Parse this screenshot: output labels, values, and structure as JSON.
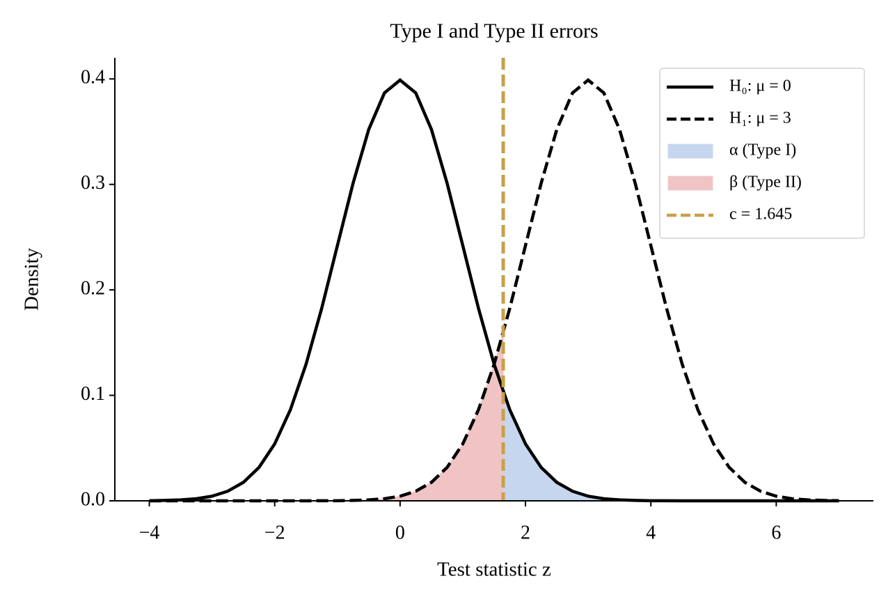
{
  "chart_data": {
    "type": "line",
    "title": "Type I and Type II errors",
    "x_label": "Test statistic z",
    "y_label": "Density",
    "xlim": [
      -4.55,
      7.55
    ],
    "ylim": [
      0,
      0.42
    ],
    "xticks": [
      {
        "value": -4,
        "label": "−4"
      },
      {
        "value": -2,
        "label": "−2"
      },
      0,
      2,
      4,
      6
    ],
    "yticks": [
      {
        "value": 0,
        "label": "0.0"
      },
      {
        "value": 0.1,
        "label": "0.1"
      },
      {
        "value": 0.2,
        "label": "0.2"
      },
      {
        "value": 0.3,
        "label": "0.3"
      },
      {
        "value": 0.4,
        "label": "0.4"
      }
    ],
    "legend": "upper right",
    "series": [
      {
        "name": "H₀: μ = 0",
        "color": "#000000",
        "dash": false,
        "x": [
          -4,
          -3.75,
          -3.5,
          -3.25,
          -3,
          -2.75,
          -2.5,
          -2.25,
          -2,
          -1.75,
          -1.5,
          -1.25,
          -1,
          -0.75,
          -0.5,
          -0.25,
          0,
          0.25,
          0.5,
          0.75,
          1,
          1.25,
          1.5,
          1.75,
          2,
          2.25,
          2.5,
          2.75,
          3,
          3.25,
          3.5,
          3.75,
          4,
          4.25,
          4.5,
          4.75,
          5,
          5.25,
          5.5,
          5.75,
          6,
          6.25,
          6.5,
          6.75,
          7
        ],
        "values": [
          0.0001,
          0.0004,
          0.0009,
          0.002,
          0.0044,
          0.0091,
          0.0175,
          0.0317,
          0.054,
          0.0863,
          0.1295,
          0.1826,
          0.242,
          0.3011,
          0.3521,
          0.3867,
          0.3989,
          0.3867,
          0.3521,
          0.3011,
          0.242,
          0.1826,
          0.1295,
          0.0863,
          0.054,
          0.0317,
          0.0175,
          0.0091,
          0.0044,
          0.002,
          0.0009,
          0.0004,
          0.0001,
          0.0001,
          0,
          0,
          0,
          0,
          0,
          0,
          0,
          0,
          0,
          0,
          0
        ]
      },
      {
        "name": "H₁: μ = 3",
        "color": "#000000",
        "dash": true,
        "x": [
          -4,
          -3.75,
          -3.5,
          -3.25,
          -3,
          -2.75,
          -2.5,
          -2.25,
          -2,
          -1.75,
          -1.5,
          -1.25,
          -1,
          -0.75,
          -0.5,
          -0.25,
          0,
          0.25,
          0.5,
          0.75,
          1,
          1.25,
          1.5,
          1.75,
          2,
          2.25,
          2.5,
          2.75,
          3,
          3.25,
          3.5,
          3.75,
          4,
          4.25,
          4.5,
          4.75,
          5,
          5.25,
          5.5,
          5.75,
          6,
          6.25,
          6.5,
          6.75,
          7
        ],
        "values": [
          0,
          0,
          0,
          0,
          0,
          0,
          0,
          0,
          0,
          0,
          0,
          0.0001,
          0.0001,
          0.0004,
          0.0009,
          0.002,
          0.0044,
          0.0091,
          0.0175,
          0.0317,
          0.054,
          0.0863,
          0.1295,
          0.1826,
          0.242,
          0.3011,
          0.3521,
          0.3867,
          0.3989,
          0.3867,
          0.3521,
          0.3011,
          0.242,
          0.1826,
          0.1295,
          0.0863,
          0.054,
          0.0317,
          0.0175,
          0.0091,
          0.0044,
          0.002,
          0.0009,
          0.0004,
          0.0001
        ]
      },
      {
        "name": "α (Type I)",
        "color": "#c6d6ef",
        "fill": true,
        "x": [
          1.645,
          1.75,
          2,
          2.25,
          2.5,
          2.75,
          3,
          3.25,
          3.5,
          3.75,
          4,
          4.25,
          4.5
        ],
        "values": [
          0.1031,
          0.0863,
          0.054,
          0.0317,
          0.0175,
          0.0091,
          0.0044,
          0.002,
          0.0009,
          0.0004,
          0.0001,
          0.0001,
          0
        ]
      },
      {
        "name": "β (Type II)",
        "color": "#f0c4c4",
        "fill": true,
        "x": [
          -1,
          -0.75,
          -0.5,
          -0.25,
          0,
          0.25,
          0.5,
          0.75,
          1,
          1.25,
          1.5,
          1.645
        ],
        "values": [
          0.0001,
          0.0004,
          0.0009,
          0.002,
          0.0044,
          0.0091,
          0.0175,
          0.0317,
          0.054,
          0.0863,
          0.1295,
          0.1593
        ]
      },
      {
        "name": "c = 1.645",
        "color": "#c8a04a",
        "dash": true,
        "vline": 1.645
      }
    ]
  }
}
